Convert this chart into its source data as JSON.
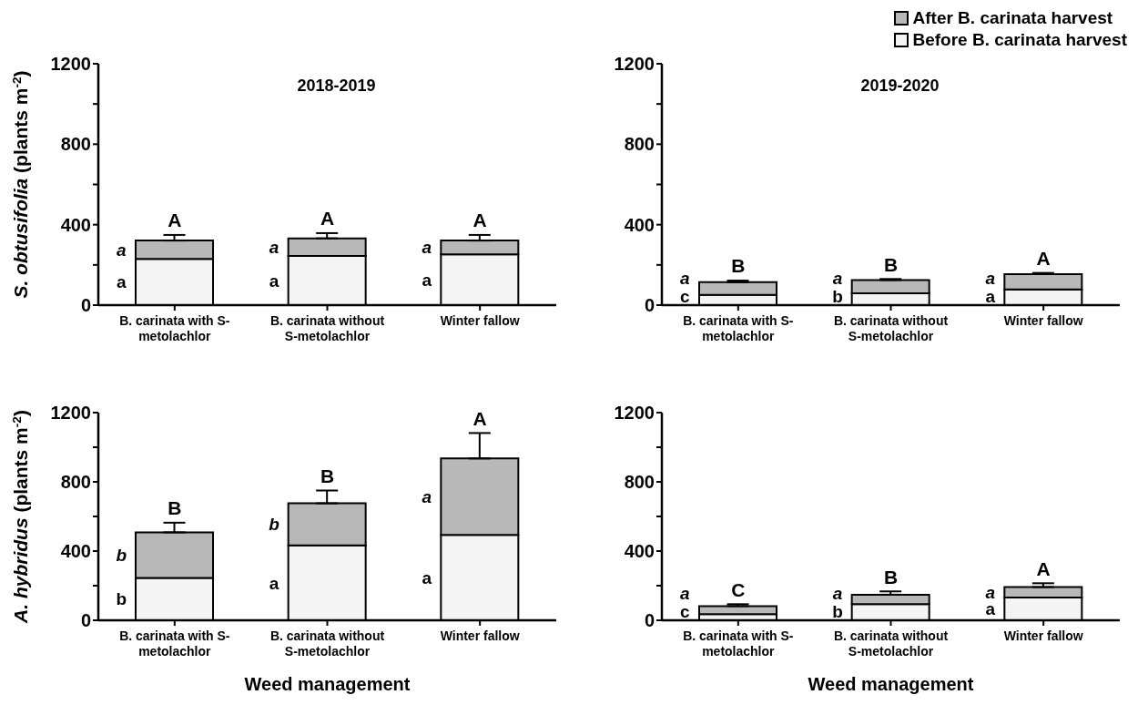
{
  "chart_data": [
    {
      "type": "bar",
      "title": "2018-2019",
      "ylabel": "S. obtusifolia (plants m$^{-2}$)",
      "categories": [
        "B. carinata with S-metolachlor",
        "B. carinata without S-metolachlor",
        "Winter fallow"
      ],
      "stacked": true,
      "ylim": [
        0,
        1200
      ],
      "yticks": [
        0,
        {
          "value": 200,
          "label": null
        },
        400,
        {
          "value": 600,
          "label": null
        },
        800,
        {
          "value": 1000,
          "label": null
        },
        1200
      ],
      "legend": false,
      "series": [
        {
          "color": "#f4f4f4",
          "values": [
            230,
            245,
            253
          ]
        },
        {
          "color": "#b8b8b8",
          "values": [
            91,
            87,
            68
          ],
          "errors": [
            [
              321,
              349
            ],
            [
              332,
              358
            ],
            [
              321,
              349
            ]
          ]
        }
      ],
      "annotations": [
        "a",
        "a",
        {
          "text": "A",
          "x": "B. carinata with S-metolachlor",
          "y": 349
        },
        "a",
        "a",
        {
          "text": "A",
          "x": "B. carinata without S-metolachlor",
          "y": 358
        },
        "a",
        "a",
        {
          "text": "A",
          "x": "Winter fallow",
          "y": 349
        }
      ]
    },
    {
      "type": "bar",
      "title": "2019-2020",
      "categories": [
        "B. carinata with S-metolachlor",
        "B. carinata without S-metolachlor",
        "Winter fallow"
      ],
      "stacked": true,
      "ylim": [
        0,
        1200
      ],
      "yticks": [
        0,
        {
          "value": 200,
          "label": null
        },
        400,
        {
          "value": 600,
          "label": null
        },
        800,
        {
          "value": 1000,
          "label": null
        },
        1200
      ],
      "legend": "top right",
      "series": [
        {
          "name": "Before B. carinata harvest",
          "color": "#f4f4f4",
          "values": [
            51,
            59,
            78
          ]
        },
        {
          "name": "After B. carinata harvest",
          "color": "#b8b8b8",
          "values": [
            63,
            66,
            76
          ],
          "errors": [
            [
              114,
              122
            ],
            [
              125,
              130
            ],
            [
              154,
              160
            ]
          ]
        }
      ],
      "annotations": [
        "c",
        "a",
        {
          "text": "B",
          "x": "B. carinata with S-metolachlor",
          "y": 122
        },
        "b",
        "a",
        {
          "text": "B",
          "x": "B. carinata without S-metolachlor",
          "y": 130
        },
        "a",
        "a",
        {
          "text": "A",
          "x": "Winter fallow",
          "y": 160
        }
      ]
    },
    {
      "type": "bar",
      "xlabel": "Weed management",
      "ylabel": "A. hybridus (plants m$^{-2}$)",
      "categories": [
        "B. carinata with S-metolachlor",
        "B. carinata without S-metolachlor",
        "Winter fallow"
      ],
      "stacked": true,
      "ylim": [
        0,
        1200
      ],
      "yticks": [
        0,
        {
          "value": 200,
          "label": null
        },
        400,
        {
          "value": 600,
          "label": null
        },
        800,
        {
          "value": 1000,
          "label": null
        },
        1200
      ],
      "legend": false,
      "series": [
        {
          "color": "#f4f4f4",
          "values": [
            245,
            433,
            493
          ]
        },
        {
          "color": "#b8b8b8",
          "values": [
            263,
            243,
            442
          ],
          "errors": [
            [
              508,
              564
            ],
            [
              676,
              750
            ],
            [
              935,
              1082
            ]
          ]
        }
      ],
      "annotations": [
        "b",
        "b",
        {
          "text": "B",
          "x": "B. carinata with S-metolachlor",
          "y": 564
        },
        "a",
        "b",
        {
          "text": "B",
          "x": "B. carinata without S-metolachlor",
          "y": 750
        },
        "a",
        "a",
        {
          "text": "A",
          "x": "Winter fallow",
          "y": 1082
        }
      ]
    },
    {
      "type": "bar",
      "xlabel": "Weed management",
      "categories": [
        "B. carinata with S-metolachlor",
        "B. carinata without S-metolachlor",
        "Winter fallow"
      ],
      "stacked": true,
      "ylim": [
        0,
        1200
      ],
      "yticks": [
        0,
        {
          "value": 200,
          "label": null
        },
        400,
        {
          "value": 600,
          "label": null
        },
        800,
        {
          "value": 1000,
          "label": null
        },
        1200
      ],
      "legend": false,
      "series": [
        {
          "color": "#f4f4f4",
          "values": [
            35,
            93,
            132
          ]
        },
        {
          "color": "#b8b8b8",
          "values": [
            47,
            55,
            60
          ],
          "errors": [
            [
              82,
              93
            ],
            [
              148,
              167
            ],
            [
              192,
              214
            ]
          ]
        }
      ],
      "annotations": [
        "c",
        "a",
        {
          "text": "C",
          "x": "B. carinata with S-metolachlor",
          "y": 93
        },
        "b",
        "a",
        {
          "text": "B",
          "x": "B. carinata without S-metolachlor",
          "y": 167
        },
        "a",
        "a",
        {
          "text": "A",
          "x": "Winter fallow",
          "y": 214
        }
      ]
    }
  ]
}
